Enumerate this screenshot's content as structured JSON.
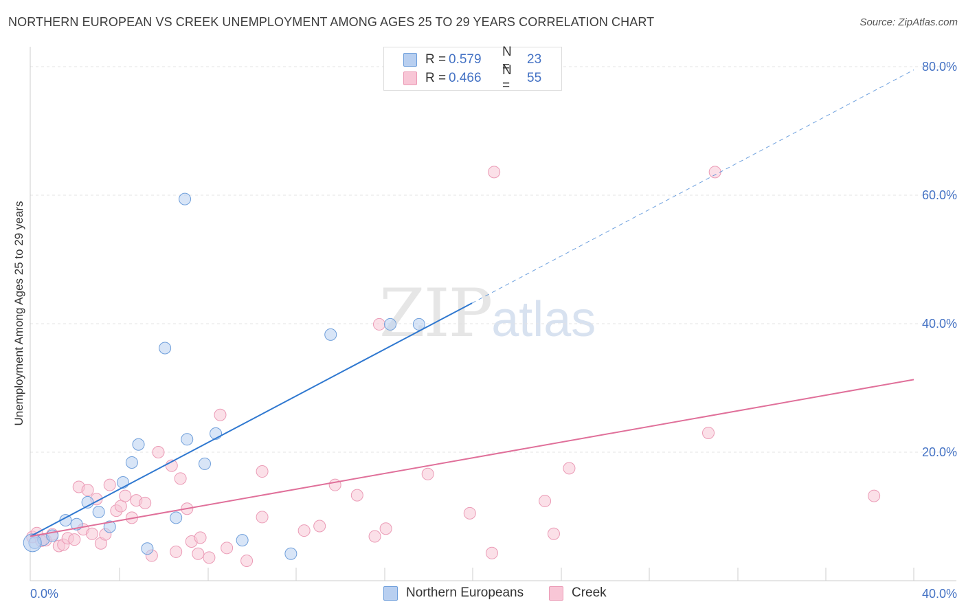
{
  "title": "NORTHERN EUROPEAN VS CREEK UNEMPLOYMENT AMONG AGES 25 TO 29 YEARS CORRELATION CHART",
  "source": "Source: ZipAtlas.com",
  "watermark": {
    "zip": "ZIP",
    "atlas": "atlas"
  },
  "legend_top": [
    {
      "r_label": "R =",
      "r_value": "0.579",
      "n_label": "N =",
      "n_value": "23"
    },
    {
      "r_label": "R =",
      "r_value": "0.466",
      "n_label": "N =",
      "n_value": "55"
    }
  ],
  "colors": {
    "blue_fill": "#b8cff0",
    "blue_stroke": "#6f9fdb",
    "blue_line": "#2f78d0",
    "pink_fill": "#f8c6d6",
    "pink_stroke": "#eb9bb6",
    "pink_line": "#e0709a",
    "tick_color": "#4472c4",
    "grid": "#e3e3e3"
  },
  "chart_data": {
    "type": "scatter",
    "title": "NORTHERN EUROPEAN VS CREEK UNEMPLOYMENT AMONG AGES 25 TO 29 YEARS CORRELATION CHART",
    "xlabel": "",
    "ylabel": "Unemployment Among Ages 25 to 29 years",
    "xlim": [
      0,
      40
    ],
    "ylim": [
      0,
      80
    ],
    "x_tick_labels": [
      "0.0%",
      "40.0%"
    ],
    "y_ticks": [
      20,
      40,
      60,
      80
    ],
    "y_tick_labels": [
      "20.0%",
      "40.0%",
      "60.0%",
      "80.0%"
    ],
    "grid": true,
    "legend": "bottom-center",
    "series": [
      {
        "name": "Northern Europeans",
        "r": 0.579,
        "n": 23,
        "trend": {
          "x0": 0,
          "y0": 6.9,
          "x1": 40,
          "y1": 79.5,
          "solid_until_x": 20
        },
        "points": [
          [
            0.2,
            5.9
          ],
          [
            0.6,
            6.4
          ],
          [
            1.0,
            7.0
          ],
          [
            1.6,
            9.4
          ],
          [
            2.1,
            8.8
          ],
          [
            2.6,
            12.2
          ],
          [
            3.1,
            10.7
          ],
          [
            3.6,
            8.4
          ],
          [
            4.2,
            15.3
          ],
          [
            4.6,
            18.4
          ],
          [
            4.9,
            21.2
          ],
          [
            5.3,
            5.0
          ],
          [
            6.1,
            36.2
          ],
          [
            6.6,
            9.8
          ],
          [
            7.0,
            59.4
          ],
          [
            7.1,
            22.0
          ],
          [
            7.9,
            18.2
          ],
          [
            8.4,
            22.9
          ],
          [
            9.6,
            6.3
          ],
          [
            11.8,
            4.2
          ],
          [
            13.6,
            38.3
          ],
          [
            16.3,
            39.9
          ],
          [
            17.6,
            39.9
          ]
        ]
      },
      {
        "name": "Creek",
        "r": 0.466,
        "n": 55,
        "trend": {
          "x0": 0,
          "y0": 6.9,
          "x1": 40,
          "y1": 31.3
        },
        "points": [
          [
            0.1,
            6.8
          ],
          [
            0.3,
            7.4
          ],
          [
            0.7,
            6.3
          ],
          [
            1.0,
            7.2
          ],
          [
            1.3,
            5.4
          ],
          [
            1.5,
            5.6
          ],
          [
            1.7,
            6.6
          ],
          [
            2.0,
            6.4
          ],
          [
            2.2,
            14.6
          ],
          [
            2.4,
            8.0
          ],
          [
            2.6,
            14.1
          ],
          [
            2.8,
            7.3
          ],
          [
            3.0,
            12.7
          ],
          [
            3.2,
            5.8
          ],
          [
            3.4,
            7.2
          ],
          [
            3.6,
            14.9
          ],
          [
            3.9,
            10.9
          ],
          [
            4.1,
            11.6
          ],
          [
            4.3,
            13.2
          ],
          [
            4.6,
            9.8
          ],
          [
            4.8,
            12.5
          ],
          [
            5.2,
            12.1
          ],
          [
            5.5,
            3.9
          ],
          [
            5.8,
            20.0
          ],
          [
            6.4,
            17.9
          ],
          [
            6.6,
            4.5
          ],
          [
            6.8,
            15.9
          ],
          [
            7.1,
            11.2
          ],
          [
            7.3,
            6.1
          ],
          [
            7.6,
            4.2
          ],
          [
            7.7,
            6.7
          ],
          [
            8.1,
            3.6
          ],
          [
            8.6,
            25.8
          ],
          [
            8.9,
            5.1
          ],
          [
            9.8,
            3.1
          ],
          [
            10.5,
            17.0
          ],
          [
            10.5,
            9.9
          ],
          [
            12.4,
            7.8
          ],
          [
            13.1,
            8.5
          ],
          [
            13.8,
            14.9
          ],
          [
            14.8,
            13.3
          ],
          [
            15.6,
            6.9
          ],
          [
            15.8,
            39.9
          ],
          [
            16.1,
            8.1
          ],
          [
            18.0,
            16.6
          ],
          [
            19.9,
            10.5
          ],
          [
            20.9,
            4.3
          ],
          [
            21.0,
            63.6
          ],
          [
            23.3,
            12.4
          ],
          [
            23.7,
            7.3
          ],
          [
            24.4,
            17.5
          ],
          [
            30.7,
            23.0
          ],
          [
            31.0,
            63.6
          ],
          [
            38.2,
            13.2
          ],
          [
            0.5,
            6.2
          ]
        ]
      }
    ]
  },
  "bottom_legend": [
    "Northern Europeans",
    "Creek"
  ]
}
